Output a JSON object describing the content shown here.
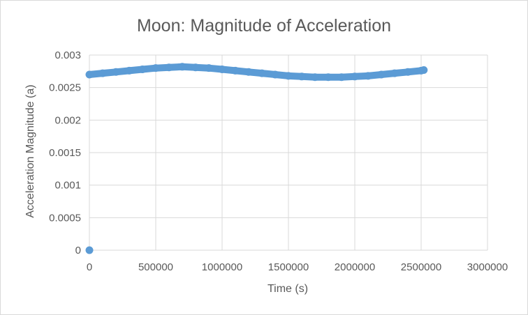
{
  "chart_data": {
    "type": "scatter",
    "title": "Moon: Magnitude of Acceleration",
    "xlabel": "Time (s)",
    "ylabel": "Acceleration Magnitude (a)",
    "xlim": [
      0,
      3000000
    ],
    "ylim": [
      0,
      0.003
    ],
    "x_ticks": [
      "0",
      "500000",
      "1000000",
      "1500000",
      "2000000",
      "2500000",
      "3000000"
    ],
    "y_ticks": [
      "0",
      "0.0005",
      "0.001",
      "0.0015",
      "0.002",
      "0.0025",
      "0.003"
    ],
    "grid": true,
    "legend": "none",
    "marker_color": "#5b9bd5",
    "series": [
      {
        "x": [
          0,
          0,
          100000,
          200000,
          300000,
          400000,
          500000,
          600000,
          700000,
          800000,
          900000,
          1000000,
          1100000,
          1200000,
          1300000,
          1400000,
          1500000,
          1600000,
          1700000,
          1800000,
          1900000,
          2000000,
          2100000,
          2200000,
          2300000,
          2400000,
          2500000,
          2520000
        ],
        "y": [
          0,
          0.0027,
          0.00272,
          0.00274,
          0.00276,
          0.00278,
          0.0028,
          0.00281,
          0.00282,
          0.00281,
          0.0028,
          0.00278,
          0.00276,
          0.00274,
          0.00272,
          0.0027,
          0.00268,
          0.00267,
          0.00266,
          0.00266,
          0.00266,
          0.00267,
          0.00268,
          0.0027,
          0.00272,
          0.00274,
          0.00276,
          0.00277
        ]
      }
    ]
  }
}
